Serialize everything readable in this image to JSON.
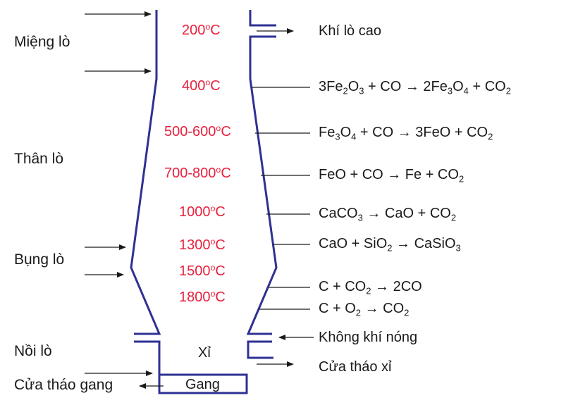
{
  "zones": {
    "mieng": "Miệng lò",
    "than": "Thân lò",
    "bung": "Bụng lò",
    "noi": "Nồi lò",
    "cua_thao_gang": "Cửa tháo gang"
  },
  "outlets": {
    "khi_lo_cao": "Khí lò cao",
    "khong_khi_nong": "Không khí nóng",
    "cua_thao_xi": "Cửa tháo xỉ"
  },
  "inner": {
    "xi": "Xỉ",
    "gang": "Gang"
  },
  "temperatures": [
    {
      "value": "200",
      "unit": "C"
    },
    {
      "value": "400",
      "unit": "C"
    },
    {
      "value": "500-600",
      "unit": "C"
    },
    {
      "value": "700-800",
      "unit": "C"
    },
    {
      "value": "1000",
      "unit": "C"
    },
    {
      "value": "1300",
      "unit": "C"
    },
    {
      "value": "1500",
      "unit": "C"
    },
    {
      "value": "1800",
      "unit": "C"
    }
  ],
  "degree_symbol": "o",
  "reactions": [
    "3Fe2O3 + CO → 2Fe3O4 + CO2",
    "Fe3O4 + CO → 3FeO + CO2",
    "FeO + CO → Fe + CO2",
    "CaCO3 → CaO + CO2",
    "CaO + SiO2 → CaSiO3",
    "C + CO2 → 2CO",
    "C + O2 → CO2"
  ],
  "colors": {
    "furnace": "#2e3192",
    "temperature": "#e8213d",
    "text": "#1a1a1a"
  }
}
